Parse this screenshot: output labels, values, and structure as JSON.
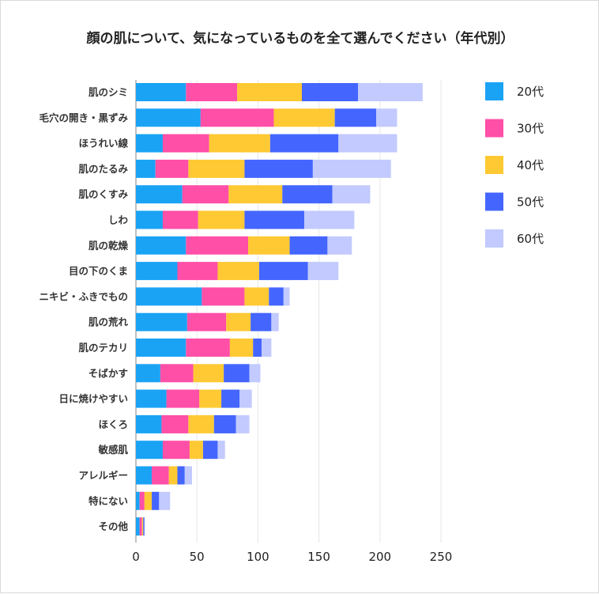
{
  "chart_data": {
    "type": "bar",
    "orientation": "horizontal",
    "stacked": true,
    "title": "顔の肌について、気になっているものを全て選んでください（年代別）",
    "xlim": [
      0,
      250
    ],
    "xticks": [
      0,
      50,
      100,
      150,
      200,
      250
    ],
    "grid": true,
    "legend_position": "right",
    "categories": [
      "肌のシミ",
      "毛穴の開き・黒ずみ",
      "ほうれい線",
      "肌のたるみ",
      "肌のくすみ",
      "しわ",
      "肌の乾燥",
      "目の下のくま",
      "ニキビ・ふきでもの",
      "肌の荒れ",
      "肌のテカリ",
      "そばかす",
      "日に焼けやすい",
      "ほくろ",
      "敏感肌",
      "アレルギー",
      "特にない",
      "その他"
    ],
    "series": [
      {
        "name": "20代",
        "color": "#1aa3f5",
        "values": [
          41,
          53,
          22,
          16,
          38,
          22,
          41,
          34,
          54,
          42,
          41,
          20,
          25,
          21,
          22,
          13,
          3,
          3
        ]
      },
      {
        "name": "30代",
        "color": "#ff4fa7",
        "values": [
          42,
          60,
          38,
          27,
          38,
          29,
          51,
          33,
          35,
          32,
          36,
          27,
          27,
          22,
          22,
          14,
          4,
          2
        ]
      },
      {
        "name": "40代",
        "color": "#ffc933",
        "values": [
          53,
          50,
          50,
          46,
          44,
          38,
          34,
          34,
          20,
          20,
          19,
          25,
          18,
          21,
          11,
          7,
          6,
          1
        ]
      },
      {
        "name": "50代",
        "color": "#4466ff",
        "values": [
          46,
          34,
          56,
          56,
          41,
          49,
          31,
          40,
          12,
          17,
          7,
          21,
          15,
          18,
          12,
          6,
          6,
          1
        ]
      },
      {
        "name": "60代",
        "color": "#c2caff",
        "values": [
          53,
          17,
          48,
          64,
          31,
          41,
          20,
          25,
          5,
          6,
          8,
          9,
          10,
          11,
          6,
          6,
          9,
          0
        ]
      }
    ]
  }
}
